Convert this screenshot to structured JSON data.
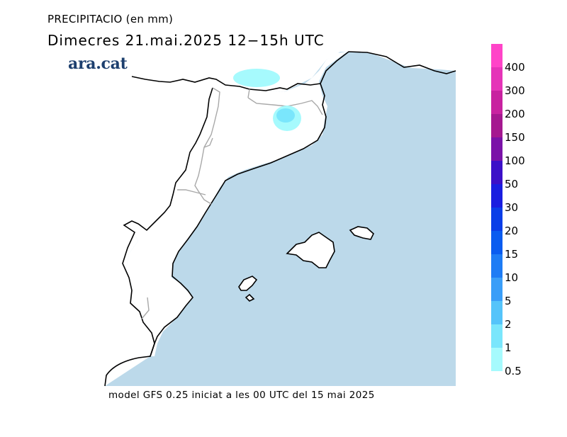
{
  "header": {
    "title": "PRECIPITACIO (en mm)",
    "subtitle": "Dimecres  21.mai.2025 12−15h UTC",
    "brand": "ara.cat"
  },
  "footer": {
    "caption": "model GFS 0.25 iniciat a les 00 UTC del 15 mai 2025"
  },
  "legend": {
    "items": [
      {
        "label": "400",
        "color": "#ff44c8"
      },
      {
        "label": "300",
        "color": "#e534b8"
      },
      {
        "label": "200",
        "color": "#c822a0"
      },
      {
        "label": "150",
        "color": "#a51890"
      },
      {
        "label": "100",
        "color": "#7b12a8"
      },
      {
        "label": "50",
        "color": "#3c10c8"
      },
      {
        "label": "30",
        "color": "#1a1ee0"
      },
      {
        "label": "20",
        "color": "#0a3ee8"
      },
      {
        "label": "15",
        "color": "#0a5cf0"
      },
      {
        "label": "10",
        "color": "#1e7cf5"
      },
      {
        "label": "5",
        "color": "#3a9ef8"
      },
      {
        "label": "2",
        "color": "#55c4fa"
      },
      {
        "label": "1",
        "color": "#7ae6fc"
      },
      {
        "label": "0.5",
        "color": "#a6fafd"
      }
    ]
  },
  "map": {
    "sea_color": "#bcd9ea",
    "land_color": "#ffffff",
    "precip_light": "#a6fafd",
    "precip_medium": "#7ae6fc"
  }
}
